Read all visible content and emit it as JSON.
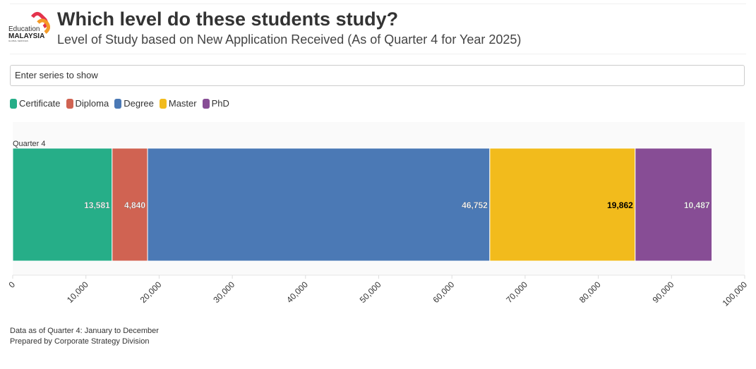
{
  "header": {
    "title": "Which level do these students study?",
    "subtitle": "Level of Study based on New Application Received (As of Quarter 4 for Year 2025)",
    "logo_text": "Education MALAYSIA GLOBAL SERVICES"
  },
  "search": {
    "placeholder": "Enter series to show"
  },
  "legend": [
    {
      "label": "Certificate",
      "color": "#26ae88"
    },
    {
      "label": "Diploma",
      "color": "#d06352"
    },
    {
      "label": "Degree",
      "color": "#4b79b5"
    },
    {
      "label": "Master",
      "color": "#f2bb1c"
    },
    {
      "label": "PhD",
      "color": "#874d95"
    }
  ],
  "chart_data": {
    "type": "bar",
    "orientation": "horizontal",
    "stacked": true,
    "categories": [
      "Quarter 4"
    ],
    "series": [
      {
        "name": "Certificate",
        "values": [
          13581
        ],
        "labels": [
          "13,581"
        ],
        "color": "#26ae88"
      },
      {
        "name": "Diploma",
        "values": [
          4840
        ],
        "labels": [
          "4,840"
        ],
        "color": "#d06352"
      },
      {
        "name": "Degree",
        "values": [
          46752
        ],
        "labels": [
          "46,752"
        ],
        "color": "#4b79b5"
      },
      {
        "name": "Master",
        "values": [
          19862
        ],
        "labels": [
          "19,862"
        ],
        "color": "#f2bb1c"
      },
      {
        "name": "PhD",
        "values": [
          10487
        ],
        "labels": [
          "10,487"
        ],
        "color": "#874d95"
      }
    ],
    "xlim": [
      0,
      100000
    ],
    "xticks": [
      "0",
      "10,000",
      "20,000",
      "30,000",
      "40,000",
      "50,000",
      "60,000",
      "70,000",
      "80,000",
      "90,000",
      "100,000"
    ],
    "legend": "top-left"
  },
  "footer": {
    "line1": "Data as of Quarter 4: January to December",
    "line2": "Prepared by Corporate Strategy Division"
  }
}
